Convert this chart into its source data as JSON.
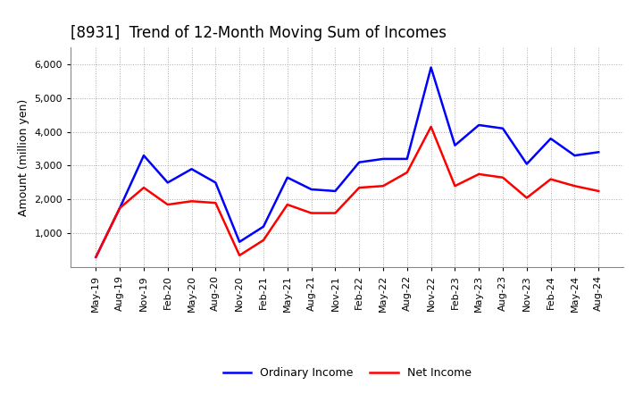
{
  "title": "[8931]  Trend of 12-Month Moving Sum of Incomes",
  "ylabel": "Amount (million yen)",
  "ylim": [
    0,
    6500
  ],
  "yticks": [
    1000,
    2000,
    3000,
    4000,
    5000,
    6000
  ],
  "x_labels": [
    "May-19",
    "Aug-19",
    "Nov-19",
    "Feb-20",
    "May-20",
    "Aug-20",
    "Nov-20",
    "Feb-21",
    "May-21",
    "Aug-21",
    "Nov-21",
    "Feb-22",
    "May-22",
    "Aug-22",
    "Nov-22",
    "Feb-23",
    "May-23",
    "Aug-23",
    "Nov-23",
    "Feb-24",
    "May-24",
    "Aug-24"
  ],
  "ordinary_income": [
    300,
    1750,
    3300,
    2500,
    2900,
    2500,
    750,
    1200,
    2650,
    2300,
    2250,
    3100,
    3200,
    3200,
    5900,
    3600,
    4200,
    4100,
    3050,
    3800,
    3300,
    3400
  ],
  "net_income": [
    300,
    1750,
    2350,
    1850,
    1950,
    1900,
    350,
    800,
    1850,
    1600,
    1600,
    2350,
    2400,
    2800,
    4150,
    2400,
    2750,
    2650,
    2050,
    2600,
    2400,
    2250
  ],
  "ordinary_color": "#0000FF",
  "net_color": "#FF0000",
  "line_width": 1.8,
  "background_color": "#FFFFFF",
  "grid_color": "#AAAAAA",
  "title_fontsize": 12,
  "axis_fontsize": 9,
  "tick_fontsize": 8,
  "legend_fontsize": 9
}
